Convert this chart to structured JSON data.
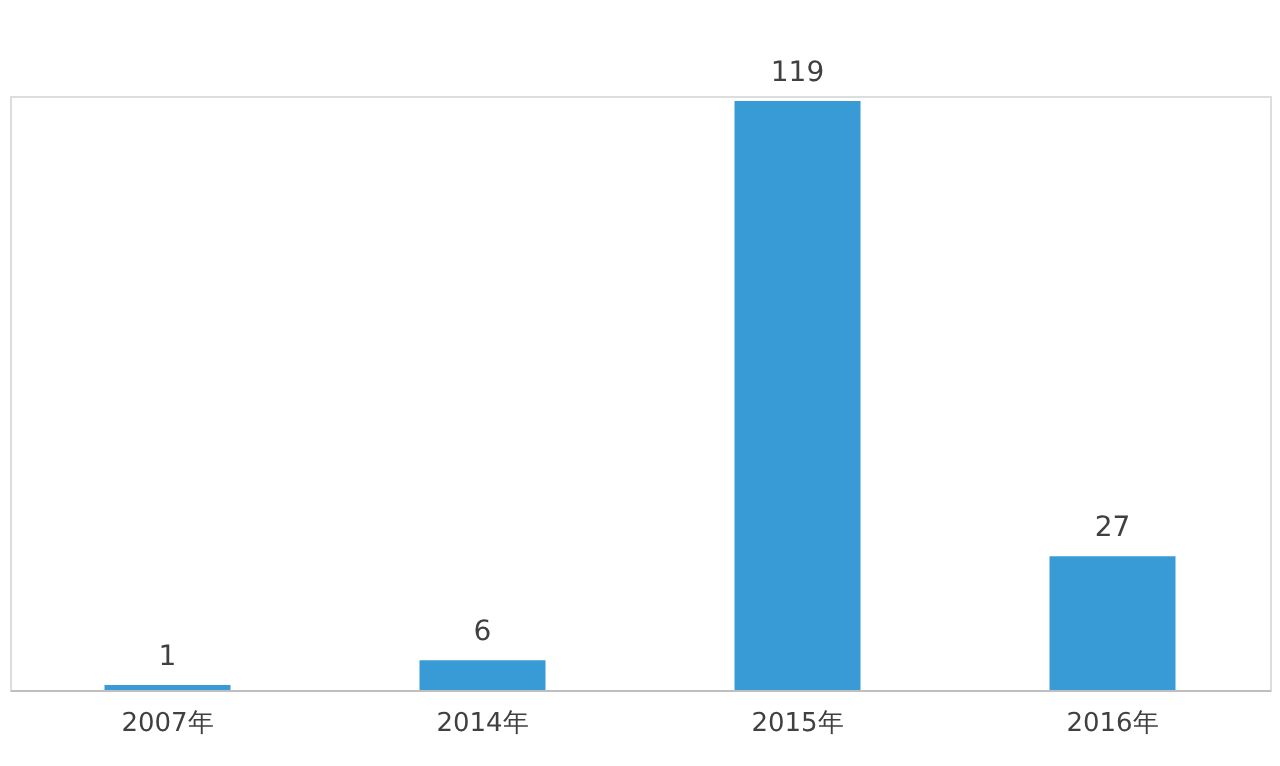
{
  "chart_data": {
    "type": "bar",
    "categories": [
      "2007年",
      "2014年",
      "2015年",
      "2016年"
    ],
    "values": [
      1,
      6,
      119,
      27
    ],
    "color": "#399bd6",
    "data_labels": true,
    "tick_labels": "x",
    "grid": false
  }
}
